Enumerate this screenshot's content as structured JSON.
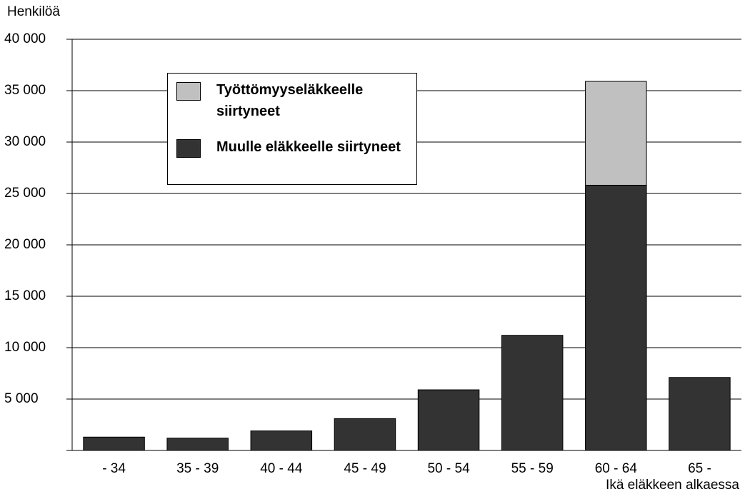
{
  "chart_data": {
    "type": "stacked_bar",
    "y_label": "Henkilöä",
    "x_label": "Ikä eläkkeen alkaessa",
    "categories": [
      "- 34",
      "35 - 39",
      "40 - 44",
      "45 - 49",
      "50 - 54",
      "55 - 59",
      "60 - 64",
      "65 -"
    ],
    "series": [
      {
        "name": "Muulle eläkkeelle siirtyneet",
        "color": "#333333",
        "values": [
          1300,
          1200,
          1900,
          3100,
          5900,
          11200,
          25800,
          7100
        ]
      },
      {
        "name": "Työttömyyseläkkeelle siirtyneet",
        "color": "#c0c0c0",
        "values": [
          0,
          0,
          0,
          0,
          0,
          0,
          10100,
          0
        ]
      }
    ],
    "ylim": [
      0,
      40000
    ],
    "yticks": [
      {
        "value": 5000,
        "label": "5 000"
      },
      {
        "value": 10000,
        "label": "10 000"
      },
      {
        "value": 15000,
        "label": "15 000"
      },
      {
        "value": 20000,
        "label": "20 000"
      },
      {
        "value": 25000,
        "label": "25 000"
      },
      {
        "value": 30000,
        "label": "30 000"
      },
      {
        "value": 35000,
        "label": "35 000"
      },
      {
        "value": 40000,
        "label": "40 000"
      }
    ],
    "grid": true
  }
}
